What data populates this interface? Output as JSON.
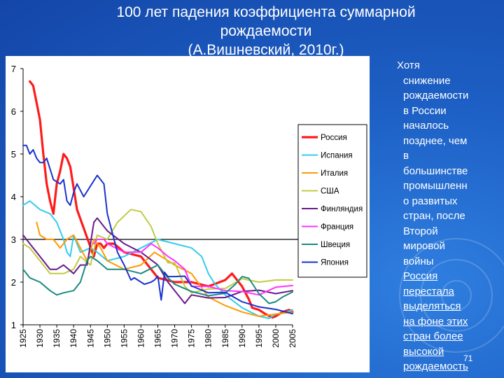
{
  "title": {
    "line1": "100 лет падения коэффициента суммарной",
    "line2": "рождаемости",
    "line3": "(А.Вишневский, 2010г.)"
  },
  "side_text": {
    "lines": [
      "Хотя",
      "снижение",
      "рождаемости",
      "в России",
      "началось",
      "позднее, чем",
      "в",
      "большинстве",
      "промышленн",
      "о развитых",
      "стран, после",
      "Второй",
      "мировой",
      "войны"
    ],
    "underlined_lines": [
      "Россия",
      "перестала",
      "выделяться",
      "на фоне этих",
      "стран более",
      "высокой",
      "рождаемость"
    ]
  },
  "page_number": "71",
  "colors": {
    "russia": "#ff1a1a",
    "spain": "#33ccee",
    "italy": "#ff9900",
    "usa": "#c0cc44",
    "finland": "#6a1a8a",
    "france": "#ff33ff",
    "sweden": "#1a8a80",
    "japan": "#1a33cc"
  },
  "chart_data": {
    "type": "line",
    "ylim": [
      1,
      7
    ],
    "xlim": [
      1925,
      2005
    ],
    "yticks": [
      "1",
      "2",
      "3",
      "4",
      "5",
      "6",
      "7"
    ],
    "xticks": [
      "1925",
      "1930",
      "1935",
      "1940",
      "1945",
      "1950",
      "1955",
      "1960",
      "1965",
      "1970",
      "1975",
      "1980",
      "1985",
      "1990",
      "1995",
      "2000",
      "2005"
    ],
    "reference_line_y": 3,
    "grid": false,
    "legend_position": "top-right",
    "series": [
      {
        "name": "Россия",
        "color_key": "russia",
        "x": [
          1927,
          1928,
          1929,
          1930,
          1931,
          1932,
          1933,
          1934,
          1935,
          1936,
          1937,
          1938,
          1939,
          1940,
          1941,
          1946,
          1947,
          1948,
          1949,
          1950,
          1951,
          1952,
          1955,
          1960,
          1965,
          1970,
          1975,
          1980,
          1985,
          1987,
          1988,
          1990,
          1992,
          1993,
          1995,
          1997,
          1999,
          2000,
          2002,
          2004,
          2005
        ],
        "y": [
          6.7,
          6.6,
          6.2,
          5.8,
          5.0,
          4.3,
          3.9,
          3.6,
          4.3,
          4.6,
          5.0,
          4.9,
          4.7,
          4.2,
          3.7,
          2.6,
          2.9,
          2.9,
          2.8,
          2.9,
          2.9,
          2.9,
          2.7,
          2.6,
          2.1,
          2.0,
          2.0,
          1.9,
          2.05,
          2.2,
          2.1,
          1.9,
          1.6,
          1.4,
          1.35,
          1.25,
          1.17,
          1.2,
          1.3,
          1.35,
          1.3
        ]
      },
      {
        "name": "Испания",
        "color_key": "spain",
        "x": [
          1925,
          1927,
          1930,
          1933,
          1935,
          1937,
          1938,
          1939,
          1940,
          1942,
          1945,
          1947,
          1950,
          1955,
          1960,
          1965,
          1970,
          1975,
          1978,
          1980,
          1982,
          1985,
          1990,
          1995,
          1998,
          2000,
          2002,
          2005
        ],
        "y": [
          3.8,
          3.9,
          3.7,
          3.6,
          3.4,
          3.0,
          2.7,
          2.6,
          3.1,
          2.7,
          2.8,
          2.7,
          2.5,
          2.6,
          2.8,
          3.0,
          2.9,
          2.8,
          2.6,
          2.2,
          1.95,
          1.7,
          1.4,
          1.2,
          1.15,
          1.25,
          1.27,
          1.35
        ]
      },
      {
        "name": "Италия",
        "color_key": "italy",
        "x": [
          1929,
          1930,
          1932,
          1934,
          1935,
          1936,
          1938,
          1940,
          1942,
          1944,
          1946,
          1948,
          1950,
          1955,
          1960,
          1964,
          1966,
          1970,
          1975,
          1980,
          1985,
          1990,
          1995,
          2000,
          2005
        ],
        "y": [
          3.4,
          3.1,
          3.0,
          3.0,
          2.9,
          2.8,
          3.0,
          3.1,
          2.8,
          2.5,
          3.0,
          2.8,
          2.5,
          2.3,
          2.4,
          2.7,
          2.6,
          2.4,
          2.2,
          1.65,
          1.45,
          1.3,
          1.2,
          1.25,
          1.3
        ]
      },
      {
        "name": "США",
        "color_key": "usa",
        "x": [
          1925,
          1927,
          1930,
          1933,
          1935,
          1937,
          1940,
          1942,
          1945,
          1947,
          1950,
          1953,
          1957,
          1960,
          1963,
          1965,
          1968,
          1970,
          1973,
          1975,
          1980,
          1985,
          1990,
          1995,
          2000,
          2005
        ],
        "y": [
          2.9,
          2.8,
          2.5,
          2.2,
          2.2,
          2.2,
          2.3,
          2.6,
          2.4,
          3.1,
          3.0,
          3.4,
          3.7,
          3.65,
          3.3,
          2.9,
          2.45,
          2.45,
          1.9,
          1.75,
          1.84,
          1.85,
          2.08,
          2.0,
          2.05,
          2.05
        ]
      },
      {
        "name": "Финляндия",
        "color_key": "finland",
        "x": [
          1925,
          1927,
          1930,
          1933,
          1935,
          1937,
          1940,
          1942,
          1944,
          1946,
          1947,
          1948,
          1950,
          1955,
          1960,
          1965,
          1968,
          1970,
          1973,
          1975,
          1980,
          1985,
          1990,
          1995,
          2000,
          2005
        ],
        "y": [
          3.1,
          2.9,
          2.6,
          2.3,
          2.3,
          2.4,
          2.2,
          2.4,
          2.4,
          3.4,
          3.5,
          3.4,
          3.2,
          2.9,
          2.7,
          2.4,
          2.0,
          1.8,
          1.5,
          1.7,
          1.63,
          1.64,
          1.78,
          1.81,
          1.73,
          1.8
        ]
      },
      {
        "name": "Франция",
        "color_key": "france",
        "x": [
          1946,
          1947,
          1949,
          1950,
          1955,
          1960,
          1963,
          1965,
          1968,
          1970,
          1973,
          1975,
          1980,
          1985,
          1990,
          1995,
          2000,
          2005
        ],
        "y": [
          2.9,
          3.0,
          3.0,
          2.9,
          2.7,
          2.7,
          2.9,
          2.8,
          2.6,
          2.5,
          2.3,
          1.9,
          1.9,
          1.8,
          1.78,
          1.7,
          1.88,
          1.92
        ]
      },
      {
        "name": "Швеция",
        "color_key": "sweden",
        "x": [
          1925,
          1927,
          1930,
          1933,
          1935,
          1937,
          1940,
          1942,
          1944,
          1945,
          1947,
          1950,
          1955,
          1960,
          1965,
          1968,
          1970,
          1975,
          1980,
          1985,
          1988,
          1990,
          1992,
          1995,
          1998,
          2000,
          2002,
          2005
        ],
        "y": [
          2.3,
          2.1,
          2.0,
          1.8,
          1.7,
          1.75,
          1.8,
          2.0,
          2.5,
          2.6,
          2.5,
          2.3,
          2.3,
          2.2,
          2.4,
          2.1,
          1.95,
          1.78,
          1.68,
          1.74,
          1.95,
          2.13,
          2.09,
          1.73,
          1.5,
          1.54,
          1.65,
          1.77
        ]
      },
      {
        "name": "Япония",
        "color_key": "japan",
        "x": [
          1925,
          1926,
          1927,
          1928,
          1929,
          1930,
          1931,
          1932,
          1934,
          1936,
          1937,
          1938,
          1939,
          1940,
          1941,
          1943,
          1947,
          1948,
          1949,
          1950,
          1951,
          1952,
          1953,
          1955,
          1957,
          1958,
          1960,
          1961,
          1963,
          1964,
          1965,
          1966,
          1967,
          1968,
          1970,
          1973,
          1975,
          1980,
          1985,
          1990,
          1995,
          2000,
          2005
        ],
        "y": [
          5.2,
          5.2,
          5.0,
          5.1,
          4.9,
          4.8,
          4.8,
          4.9,
          4.4,
          4.3,
          4.4,
          3.9,
          3.8,
          4.1,
          4.3,
          4.0,
          4.5,
          4.4,
          4.3,
          3.6,
          3.3,
          3.0,
          2.7,
          2.4,
          2.05,
          2.1,
          2.0,
          1.95,
          2.0,
          2.05,
          2.14,
          1.58,
          2.23,
          2.13,
          2.13,
          2.14,
          1.91,
          1.75,
          1.76,
          1.54,
          1.42,
          1.36,
          1.26
        ]
      }
    ]
  }
}
